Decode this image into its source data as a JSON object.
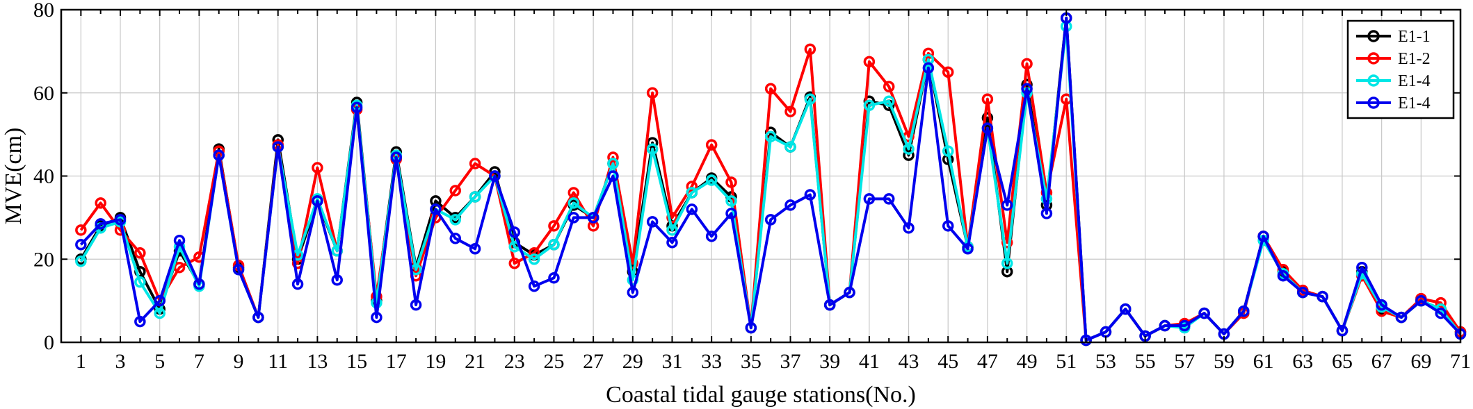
{
  "chart_data": {
    "type": "line",
    "title": "",
    "xlabel": "Coastal tidal gauge stations(No.)",
    "ylabel": "MVE(cm)",
    "xlim": [
      0,
      71
    ],
    "ylim": [
      0,
      80
    ],
    "grid": true,
    "legend_position": "top-right",
    "x_ticks": [
      1,
      3,
      5,
      7,
      9,
      11,
      13,
      15,
      17,
      19,
      21,
      23,
      25,
      27,
      29,
      31,
      33,
      35,
      37,
      39,
      41,
      43,
      45,
      47,
      49,
      51,
      53,
      55,
      57,
      59,
      61,
      63,
      65,
      67,
      69,
      71
    ],
    "y_ticks": [
      0,
      20,
      40,
      60,
      80
    ],
    "x": [
      1,
      2,
      3,
      4,
      5,
      6,
      7,
      8,
      9,
      10,
      11,
      12,
      13,
      14,
      15,
      16,
      17,
      18,
      19,
      20,
      21,
      22,
      23,
      24,
      25,
      26,
      27,
      28,
      29,
      30,
      31,
      32,
      33,
      34,
      35,
      36,
      37,
      38,
      39,
      40,
      41,
      42,
      43,
      44,
      45,
      46,
      47,
      48,
      49,
      50,
      51,
      52,
      53,
      54,
      55,
      56,
      57,
      58,
      59,
      60,
      61,
      62,
      63,
      64,
      65,
      66,
      67,
      68,
      69,
      70,
      71
    ],
    "series": [
      {
        "name": "E1-1",
        "color": "#000000",
        "values": [
          20,
          28,
          30,
          17,
          8,
          22,
          14,
          46.5,
          18,
          6,
          48.7,
          20,
          34,
          22,
          57.7,
          10,
          45.8,
          18,
          34,
          30,
          35,
          41,
          24,
          21,
          23.5,
          33,
          30,
          43,
          17,
          48,
          28,
          36,
          39.5,
          35,
          3.5,
          50.5,
          47,
          59,
          9,
          12,
          58,
          57,
          45,
          68,
          44,
          23,
          54,
          17,
          62,
          33,
          78,
          0.5,
          2.5,
          8,
          1.5,
          4,
          4,
          7,
          2,
          7.5,
          25.5,
          17,
          12,
          11,
          2.8,
          17,
          8,
          6,
          10,
          8,
          2.5
        ]
      },
      {
        "name": "E1-2",
        "color": "#ff0000",
        "values": [
          27,
          33.5,
          27,
          21.5,
          10,
          18,
          20.5,
          46,
          18.5,
          6,
          47.5,
          19,
          42,
          22,
          56,
          11,
          44,
          16,
          30,
          36.5,
          43,
          40,
          19,
          21.5,
          28,
          36,
          28,
          44.5,
          19,
          60,
          30,
          37.5,
          47.5,
          38.5,
          3.5,
          61,
          55.5,
          70.5,
          9,
          12,
          67.5,
          61.5,
          49.5,
          69.5,
          65,
          23,
          58.5,
          24,
          67,
          36,
          58.5,
          0.5,
          2.5,
          8,
          1.5,
          4,
          4.5,
          7,
          2,
          7,
          25.5,
          17.5,
          12.5,
          11,
          2.8,
          16,
          7.5,
          6,
          10.5,
          9.5,
          2.5
        ]
      },
      {
        "name": "E1-4",
        "color": "#00e6e6",
        "values": [
          19.5,
          27.5,
          29,
          14.5,
          7,
          23,
          13.5,
          45,
          17.5,
          6,
          47,
          21,
          34.5,
          22,
          57,
          9.5,
          45,
          17.5,
          32,
          29.5,
          35,
          40,
          23,
          20,
          23.5,
          33.5,
          30,
          43,
          15,
          46.5,
          27,
          36,
          39,
          34,
          3.5,
          49.5,
          47,
          58.5,
          9,
          12,
          57,
          58,
          46.5,
          68,
          46,
          23,
          51.5,
          19,
          60,
          34.5,
          76,
          0.5,
          2.5,
          8,
          1.5,
          4,
          3.5,
          7,
          2,
          7.5,
          24.5,
          16.5,
          12,
          11,
          2.8,
          16.5,
          8.5,
          6,
          10,
          8,
          2
        ]
      },
      {
        "name": "E1-4",
        "color": "#0000ee",
        "values": [
          23.5,
          28.5,
          29.5,
          5,
          10,
          24.5,
          14,
          45,
          17.5,
          6,
          47,
          14,
          34,
          15,
          56.5,
          6,
          44.5,
          9,
          32,
          25,
          22.5,
          40,
          26.5,
          13.5,
          15.5,
          30,
          30,
          40,
          12,
          29,
          24,
          32,
          25.5,
          31,
          3.5,
          29.5,
          33,
          35.5,
          9,
          12,
          34.5,
          34.5,
          27.5,
          66,
          28,
          22.5,
          51.5,
          33,
          61,
          31,
          78,
          0.5,
          2.5,
          8,
          1.5,
          4,
          4,
          7,
          2,
          7.5,
          25.5,
          16,
          12,
          11,
          2.8,
          18,
          9,
          6,
          10,
          7,
          2
        ]
      }
    ]
  }
}
